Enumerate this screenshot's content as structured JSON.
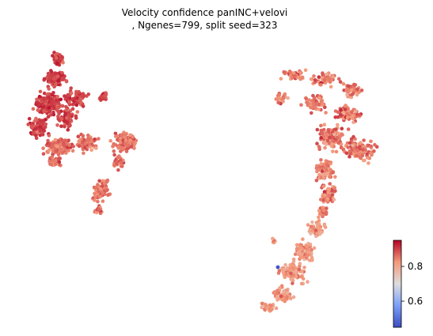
{
  "chart_data": {
    "type": "scatter",
    "title_line1": "Velocity confidence panINC+velovi",
    "title_line2": ", Ngenes=799, split seed=323",
    "colormap": "coolwarm",
    "colorbar": {
      "ticks": [
        0.6,
        0.8
      ],
      "tick_labels": [
        "0.6",
        "0.8"
      ],
      "range": [
        0.45,
        0.95
      ],
      "colors": {
        "low": "#3b4cc0",
        "mid": "#dddddd",
        "high": "#b40426"
      }
    },
    "axes_visible": false,
    "clusters": [
      {
        "id": "left-upper-arm",
        "value_mean": 0.9,
        "value_spread": 0.04
      },
      {
        "id": "left-lower-blob",
        "value_mean": 0.86,
        "value_spread": 0.05
      },
      {
        "id": "right-arc",
        "value_mean": 0.85,
        "value_spread": 0.06
      },
      {
        "id": "right-lower-stem",
        "value_mean": 0.82,
        "value_spread": 0.05
      }
    ],
    "outlier": {
      "value": 0.47
    }
  }
}
